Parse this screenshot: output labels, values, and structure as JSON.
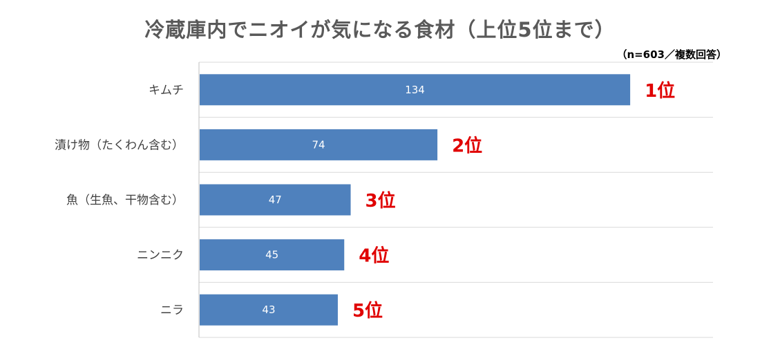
{
  "chart_data": {
    "type": "bar",
    "orientation": "horizontal",
    "title": "冷蔵庫内でニオイが気になる食材（上位5位まで）",
    "subtitle": "（n=603／複数回答）",
    "categories": [
      "キムチ",
      "漬け物（たくわん含む）",
      "魚（生魚、干物含む）",
      "ニンニク",
      "ニラ"
    ],
    "values": [
      134,
      74,
      47,
      45,
      43
    ],
    "value_labels": [
      "134",
      "74",
      "47",
      "45",
      "43"
    ],
    "annotations": [
      "1位",
      "2位",
      "3位",
      "4位",
      "5位"
    ],
    "xlim": [
      0,
      160
    ],
    "grid": true,
    "legend": "none",
    "colors": {
      "bar": "#4f81bd",
      "annotation": "#e00000",
      "grid": "#d9d9d9"
    }
  }
}
